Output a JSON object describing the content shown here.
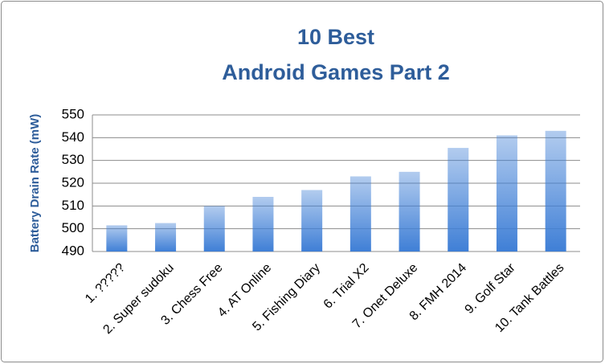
{
  "chart_data": {
    "type": "bar",
    "title": [
      "10 Best",
      "Android Games Part 2"
    ],
    "y_label": "Battery Drain Rate (mW)",
    "categories": [
      "1. ?????",
      "2. Super sudoku",
      "3. Chess Free",
      "4. AT Online",
      "5. Fishing Diary",
      "6. Trial X2",
      "7. Onet Deluxe",
      "8. FMH 2014",
      "9. Golf Star",
      "10. Tank Battles"
    ],
    "values": [
      501.5,
      502.5,
      510,
      514,
      517,
      523,
      525,
      535.5,
      541,
      543
    ],
    "color": "#3f7fd6",
    "ylim": [
      490,
      550
    ],
    "yticks": [
      490,
      500,
      510,
      520,
      530,
      540,
      550
    ],
    "grid": true
  }
}
